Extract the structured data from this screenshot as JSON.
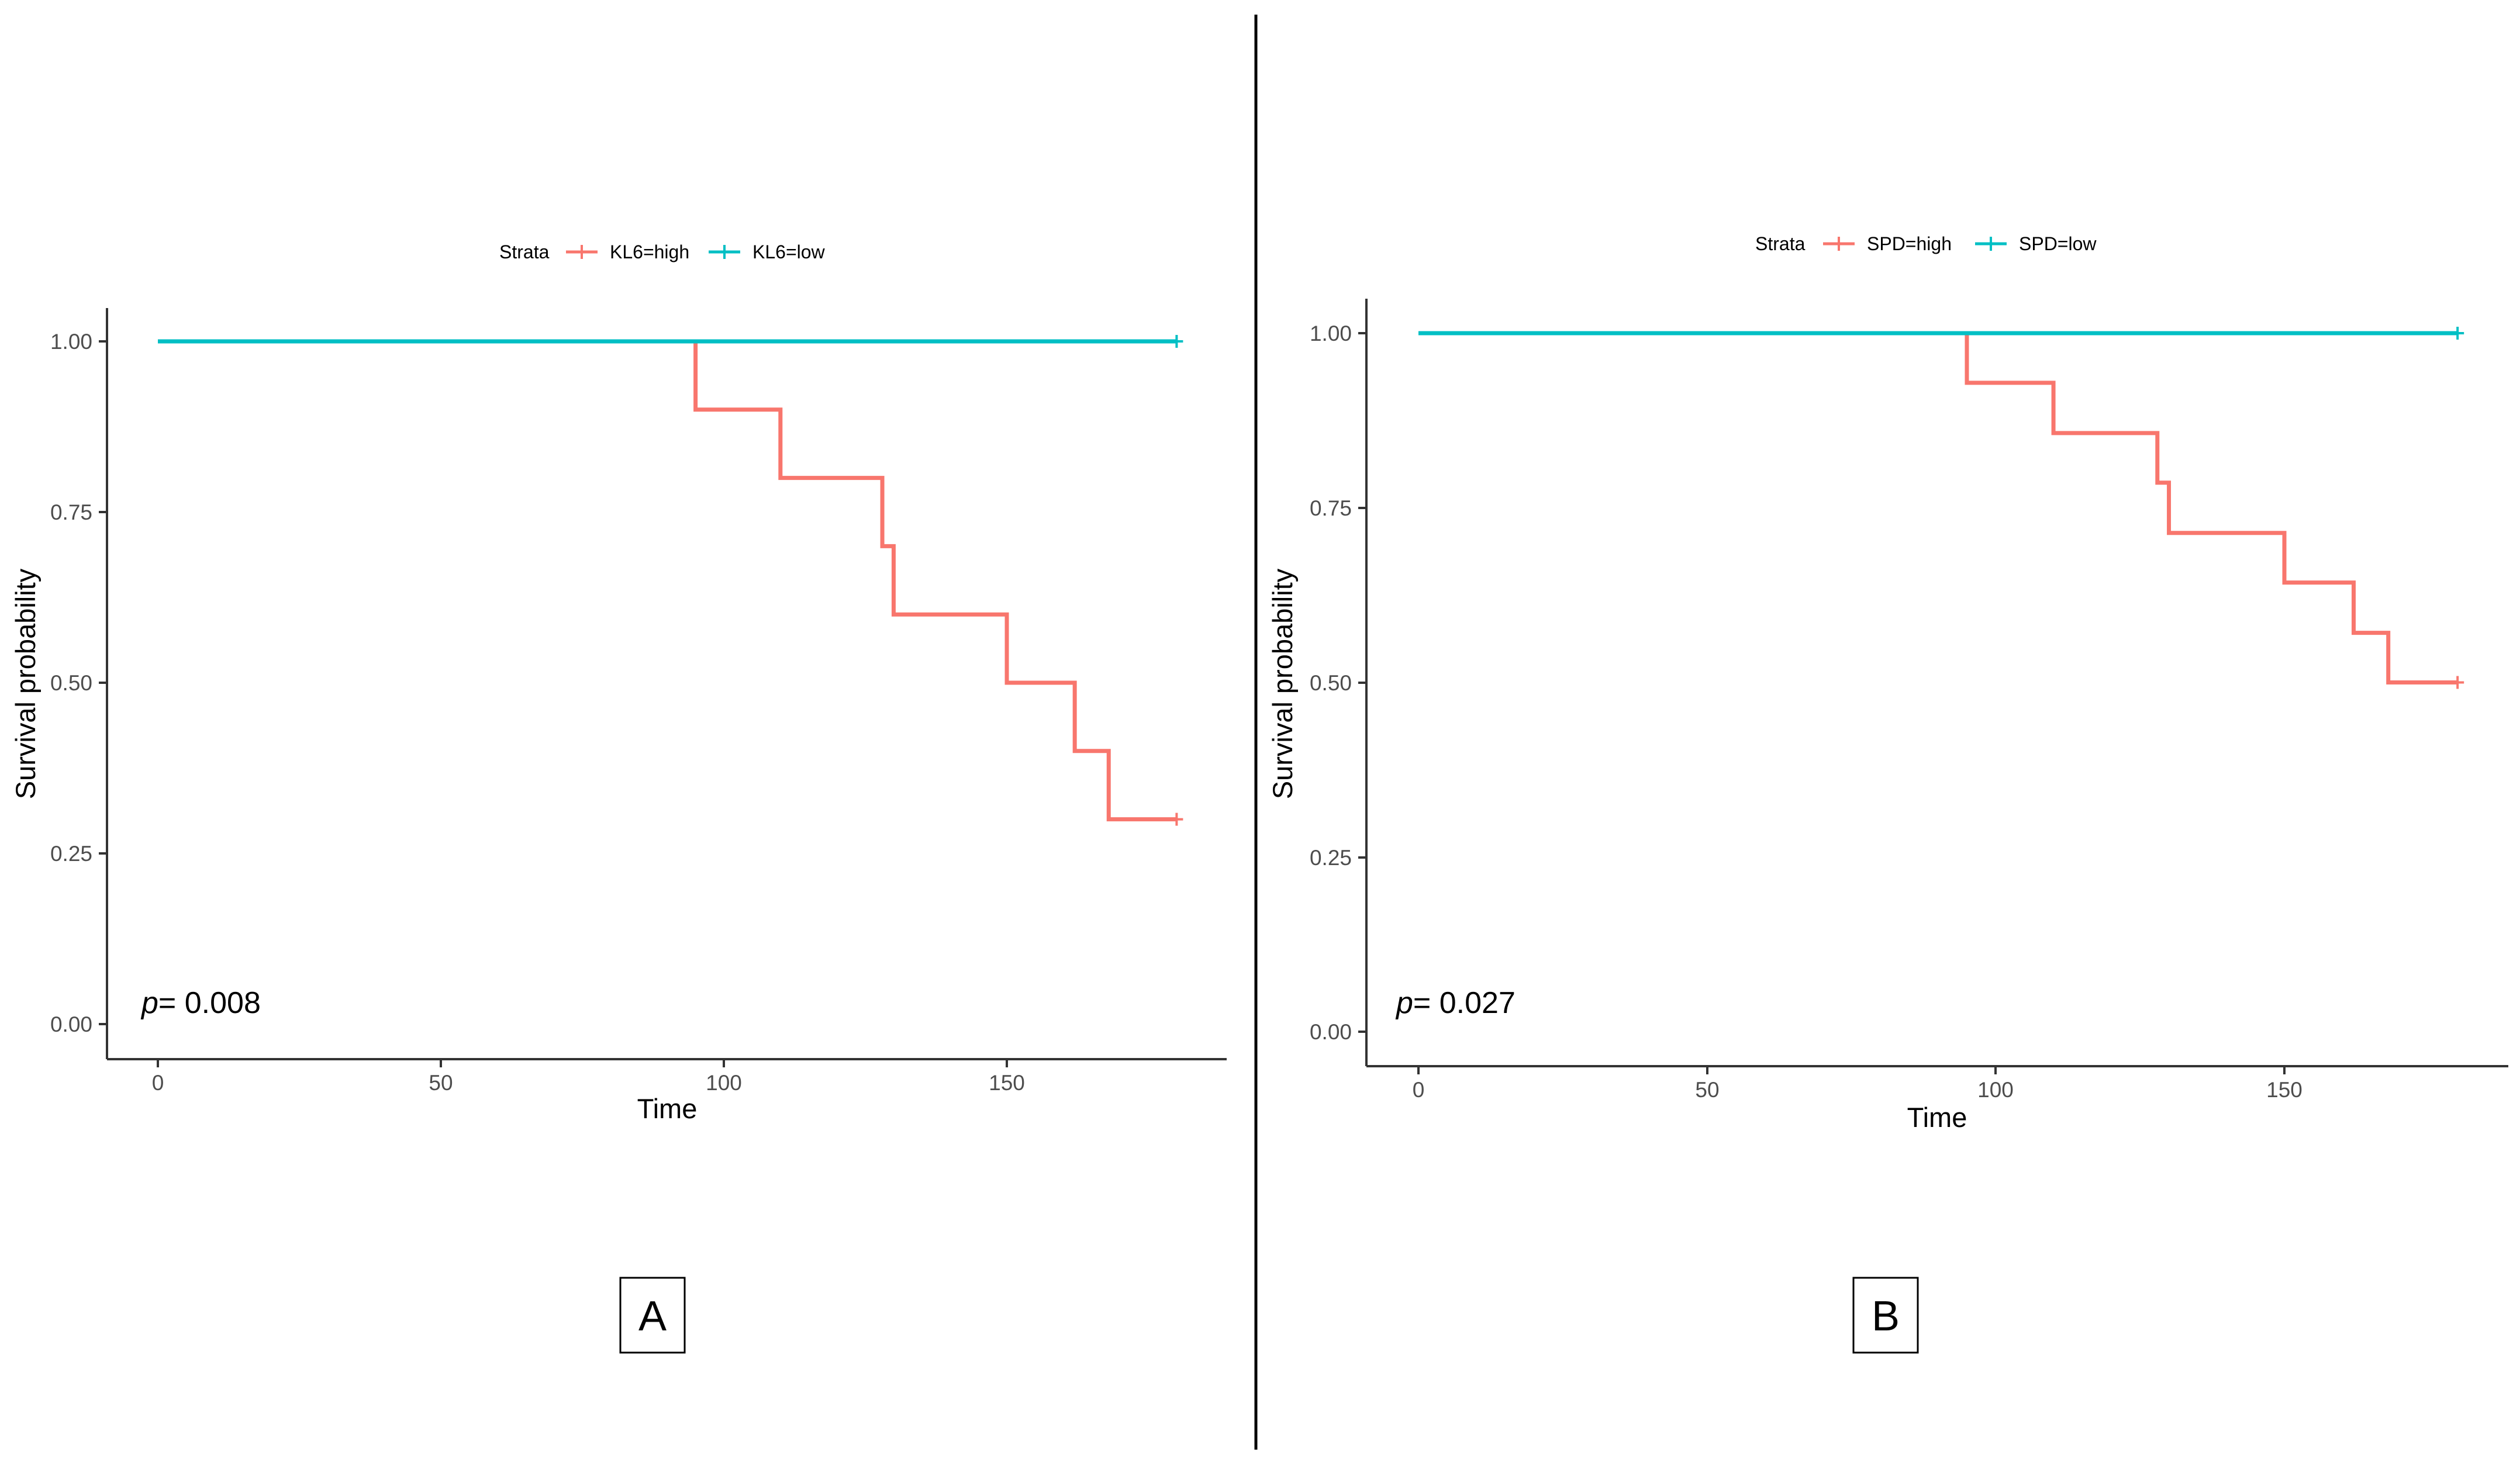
{
  "chart_data": [
    {
      "type": "line",
      "subtype": "kaplan-meier",
      "panel_label": "A",
      "xlabel": "Time",
      "ylabel": "Survival probability",
      "xlim": [
        -9,
        189
      ],
      "ylim": [
        -0.05,
        1.05
      ],
      "xticks": [
        0,
        50,
        100,
        150
      ],
      "xtick_labels": [
        "0",
        "50",
        "100",
        "150"
      ],
      "yticks": [
        0,
        0.25,
        0.5,
        0.75,
        1.0
      ],
      "ytick_labels": [
        "0.00",
        "0.25",
        "0.50",
        "0.75",
        "1.00"
      ],
      "legend_title": "Strata",
      "legend_position": "top",
      "p_prefix": "p",
      "p_value": "= 0.008",
      "series": [
        {
          "name": "KL6=high",
          "color": "#f8766d",
          "x": [
            0,
            95,
            110,
            128,
            130,
            150,
            162,
            168,
            180
          ],
          "y": [
            1.0,
            0.9,
            0.8,
            0.7,
            0.6,
            0.5,
            0.4,
            0.3,
            0.3
          ],
          "censor_x": [
            180
          ],
          "censor_y": [
            0.3
          ]
        },
        {
          "name": "KL6=low",
          "color": "#00bfc4",
          "x": [
            0,
            180
          ],
          "y": [
            1.0,
            1.0
          ],
          "censor_x": [
            180
          ],
          "censor_y": [
            1.0
          ]
        }
      ]
    },
    {
      "type": "line",
      "subtype": "kaplan-meier",
      "panel_label": "B",
      "xlabel": "Time",
      "ylabel": "Survival probability",
      "xlim": [
        -9,
        189
      ],
      "ylim": [
        -0.05,
        1.05
      ],
      "xticks": [
        0,
        50,
        100,
        150
      ],
      "xtick_labels": [
        "0",
        "50",
        "100",
        "150"
      ],
      "yticks": [
        0,
        0.25,
        0.5,
        0.75,
        1.0
      ],
      "ytick_labels": [
        "0.00",
        "0.25",
        "0.50",
        "0.75",
        "1.00"
      ],
      "legend_title": "Strata",
      "legend_position": "top",
      "p_prefix": "p",
      "p_value": "= 0.027",
      "series": [
        {
          "name": "SPD=high",
          "color": "#f8766d",
          "x": [
            0,
            95,
            110,
            128,
            130,
            150,
            162,
            168,
            180
          ],
          "y": [
            1.0,
            0.929,
            0.857,
            0.786,
            0.714,
            0.643,
            0.571,
            0.5,
            0.5
          ],
          "censor_x": [
            180
          ],
          "censor_y": [
            0.5
          ]
        },
        {
          "name": "SPD=low",
          "color": "#00bfc4",
          "x": [
            0,
            180
          ],
          "y": [
            1.0,
            1.0
          ],
          "censor_x": [
            180
          ],
          "censor_y": [
            1.0
          ]
        }
      ]
    }
  ]
}
